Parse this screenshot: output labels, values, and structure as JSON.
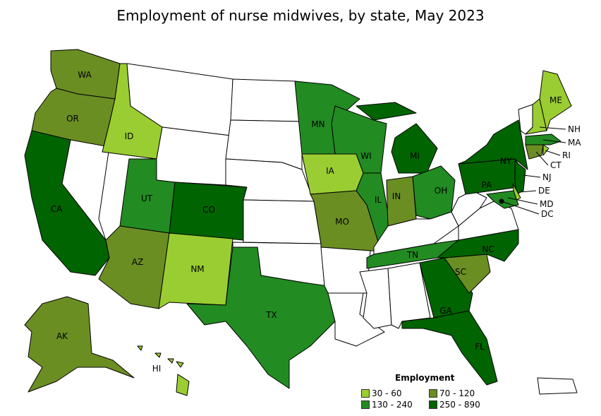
{
  "title": "Employment of nurse midwives, by state, May 2023",
  "legend": {
    "title": "Employment",
    "items": [
      {
        "label": "30 - 60",
        "color": "#9acd32"
      },
      {
        "label": "70 - 120",
        "color": "#6b8e23"
      },
      {
        "label": "130 - 240",
        "color": "#228b22"
      },
      {
        "label": "250 - 890",
        "color": "#006400"
      }
    ],
    "no_data_color": "#ffffff"
  },
  "states": [
    {
      "abbr": "WA",
      "bin": 1
    },
    {
      "abbr": "OR",
      "bin": 1
    },
    {
      "abbr": "CA",
      "bin": 3
    },
    {
      "abbr": "NV",
      "bin": null
    },
    {
      "abbr": "ID",
      "bin": 0
    },
    {
      "abbr": "MT",
      "bin": null
    },
    {
      "abbr": "WY",
      "bin": null
    },
    {
      "abbr": "UT",
      "bin": 2
    },
    {
      "abbr": "CO",
      "bin": 3
    },
    {
      "abbr": "AZ",
      "bin": 1
    },
    {
      "abbr": "NM",
      "bin": 0
    },
    {
      "abbr": "ND",
      "bin": null
    },
    {
      "abbr": "SD",
      "bin": null
    },
    {
      "abbr": "NE",
      "bin": null
    },
    {
      "abbr": "KS",
      "bin": null
    },
    {
      "abbr": "OK",
      "bin": null
    },
    {
      "abbr": "TX",
      "bin": 2
    },
    {
      "abbr": "MN",
      "bin": 2
    },
    {
      "abbr": "IA",
      "bin": 0
    },
    {
      "abbr": "MO",
      "bin": 1
    },
    {
      "abbr": "AR",
      "bin": null
    },
    {
      "abbr": "LA",
      "bin": null
    },
    {
      "abbr": "WI",
      "bin": 2
    },
    {
      "abbr": "IL",
      "bin": 2
    },
    {
      "abbr": "MI",
      "bin": 3
    },
    {
      "abbr": "IN",
      "bin": 1
    },
    {
      "abbr": "OH",
      "bin": 2
    },
    {
      "abbr": "KY",
      "bin": null
    },
    {
      "abbr": "TN",
      "bin": 2
    },
    {
      "abbr": "MS",
      "bin": null
    },
    {
      "abbr": "AL",
      "bin": null
    },
    {
      "abbr": "GA",
      "bin": 3
    },
    {
      "abbr": "FL",
      "bin": 3
    },
    {
      "abbr": "SC",
      "bin": 1
    },
    {
      "abbr": "NC",
      "bin": 3
    },
    {
      "abbr": "VA",
      "bin": null
    },
    {
      "abbr": "WV",
      "bin": null
    },
    {
      "abbr": "PA",
      "bin": 3
    },
    {
      "abbr": "NY",
      "bin": 3
    },
    {
      "abbr": "VT",
      "bin": null
    },
    {
      "abbr": "NH",
      "bin": 0
    },
    {
      "abbr": "ME",
      "bin": 0
    },
    {
      "abbr": "MA",
      "bin": 2
    },
    {
      "abbr": "CT",
      "bin": 1
    },
    {
      "abbr": "RI",
      "bin": 0
    },
    {
      "abbr": "NJ",
      "bin": 3
    },
    {
      "abbr": "DE",
      "bin": 0
    },
    {
      "abbr": "MD",
      "bin": 2
    },
    {
      "abbr": "DC",
      "bin": 3
    },
    {
      "abbr": "AK",
      "bin": 1
    },
    {
      "abbr": "HI",
      "bin": 0
    },
    {
      "abbr": "PR",
      "bin": null
    }
  ]
}
